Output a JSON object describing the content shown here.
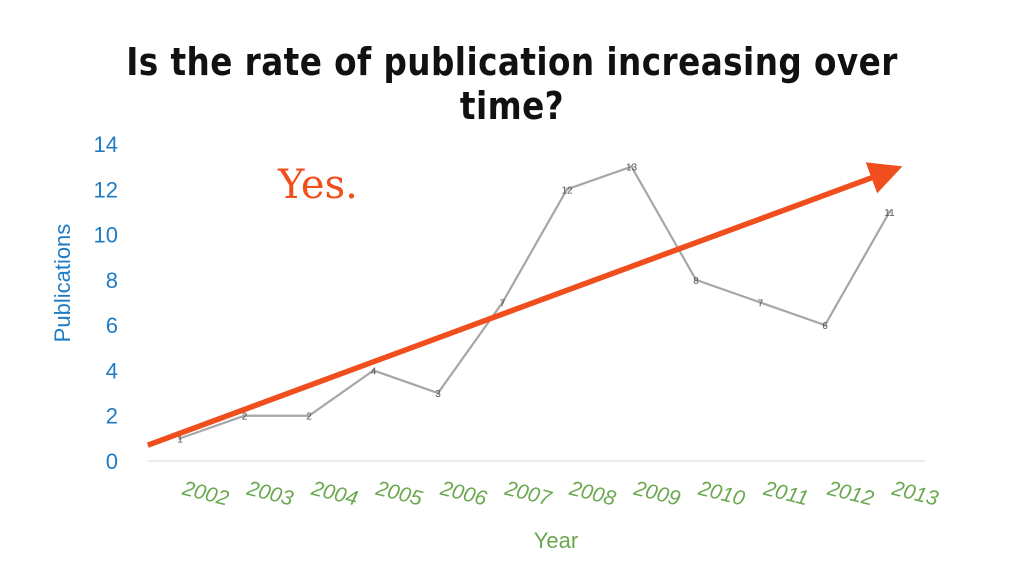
{
  "slide": {
    "title": "Is the rate of publication increasing over time?"
  },
  "colors": {
    "axis_y": "#1f7cc4",
    "axis_x": "#6aa84f",
    "series_line": "#a6a6a6",
    "trend_arrow": "#f04e1c",
    "baseline": "#d9d9d9"
  },
  "chart_data": {
    "type": "line",
    "title": "",
    "xlabel": "Year",
    "ylabel": "Publications",
    "categories": [
      "2002",
      "2003",
      "2004",
      "2005",
      "2006",
      "2007",
      "2008",
      "2009",
      "2010",
      "2011",
      "2012",
      "2013"
    ],
    "series": [
      {
        "values": [
          1,
          2,
          2,
          4,
          3,
          7,
          12,
          13,
          8,
          7,
          6,
          11
        ]
      }
    ],
    "ylim": [
      0,
      14
    ],
    "yticks": [
      0,
      2,
      4,
      6,
      8,
      10,
      12,
      14
    ],
    "grid": false,
    "data_labels": true,
    "annotation": {
      "text": "Yes.",
      "trend_arrow": {
        "start": [
          2001.5,
          0.7
        ],
        "end": [
          2013,
          12.8
        ]
      }
    }
  }
}
